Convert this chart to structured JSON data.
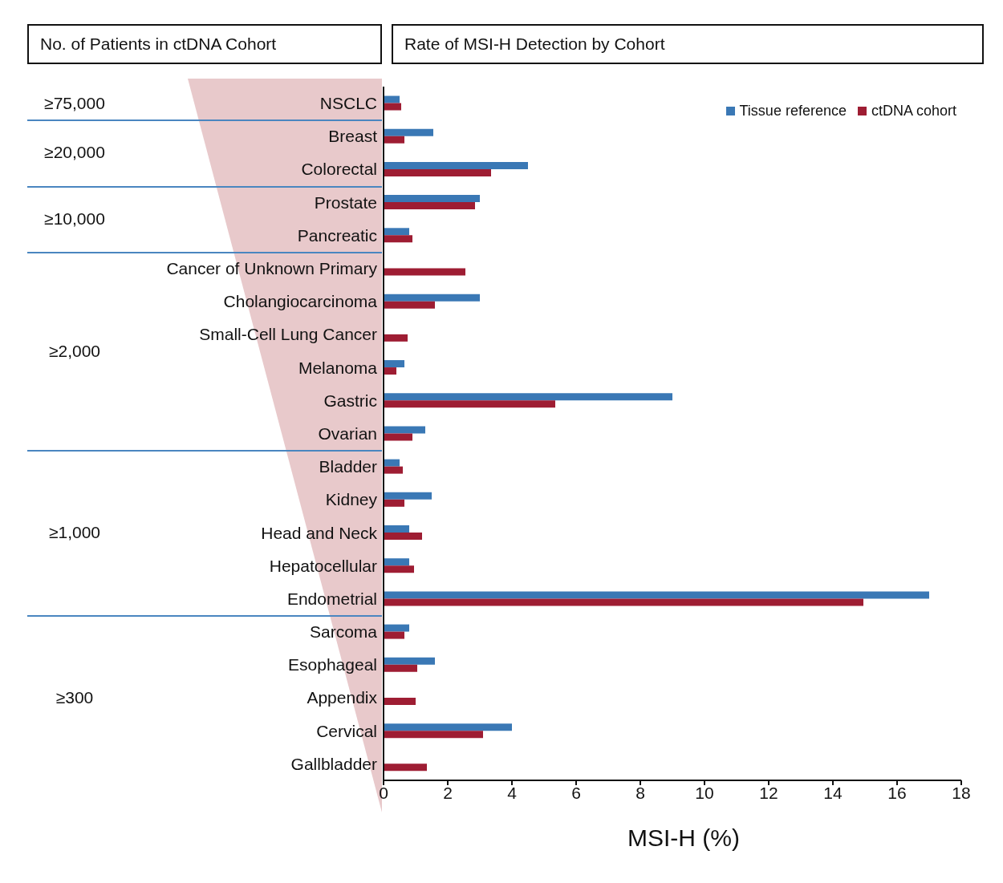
{
  "chart_data": {
    "type": "bar",
    "orientation": "horizontal",
    "title": "Rate of MSI-H Detection by Cohort",
    "xlabel": "MSI-H (%)",
    "categories": [
      "NSCLC",
      "Breast",
      "Colorectal",
      "Prostate",
      "Pancreatic",
      "Cancer of Unknown Primary",
      "Cholangiocarcinoma",
      "Small-Cell Lung Cancer",
      "Melanoma",
      "Gastric",
      "Ovarian",
      "Bladder",
      "Kidney",
      "Head and Neck",
      "Hepatocellular",
      "Endometrial",
      "Sarcoma",
      "Esophageal",
      "Appendix",
      "Cervical",
      "Gallbladder"
    ],
    "series": [
      {
        "name": "Tissue reference",
        "color": "#3a78b5",
        "values": [
          0.5,
          1.55,
          4.5,
          3.0,
          0.8,
          null,
          3.0,
          null,
          0.65,
          9.0,
          1.3,
          0.5,
          1.5,
          0.8,
          0.8,
          17.0,
          0.8,
          1.6,
          null,
          4.0,
          null
        ]
      },
      {
        "name": "ctDNA cohort",
        "color": "#9e1d33",
        "values": [
          0.55,
          0.65,
          3.35,
          2.85,
          0.9,
          2.55,
          1.6,
          0.75,
          0.4,
          5.35,
          0.9,
          0.6,
          0.65,
          1.2,
          0.95,
          14.95,
          0.65,
          1.05,
          1.0,
          3.1,
          1.35
        ]
      }
    ],
    "xlim": [
      0,
      18
    ],
    "xticks": [
      0,
      2,
      4,
      6,
      8,
      10,
      12,
      14,
      16,
      18
    ],
    "legend": "top right",
    "grid": false,
    "annotations": [
      "No. of Patients in ctDNA Cohort",
      "≥75,000",
      "≥20,000",
      "≥10,000",
      "≥2,000",
      "≥1,000",
      "≥300"
    ]
  }
}
